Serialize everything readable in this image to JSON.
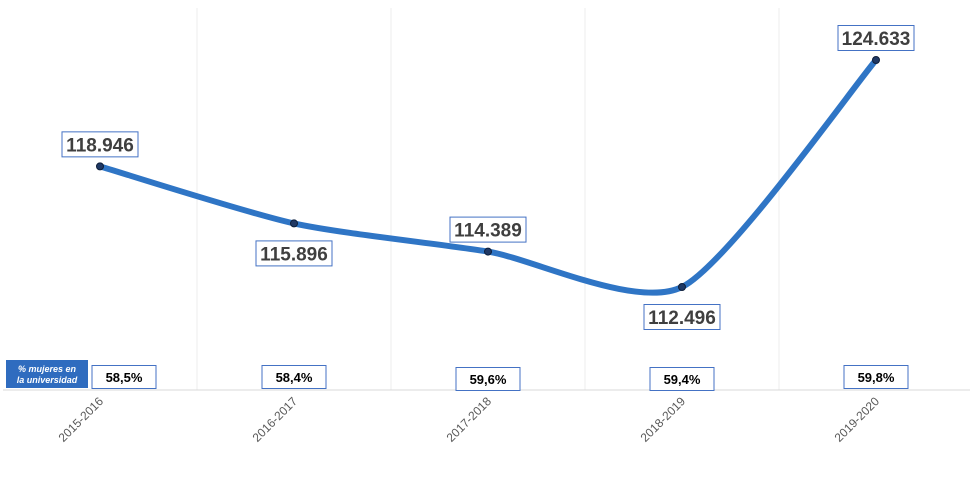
{
  "chart_data": {
    "type": "line",
    "categories": [
      "2015-2016",
      "2016-2017",
      "2017-2018",
      "2018-2019",
      "2019-2020"
    ],
    "values": [
      118946,
      115896,
      114389,
      112496,
      124633
    ],
    "value_labels": [
      "118.946",
      "115.896",
      "114.389",
      "112.496",
      "124.633"
    ],
    "secondary_row": {
      "label": "% mujeres en la universidad",
      "label_lines": [
        "% mujeres en",
        "la universidad"
      ],
      "values": [
        "58,5%",
        "58,4%",
        "59,6%",
        "59,4%",
        "59,8%"
      ]
    },
    "title": "",
    "xlabel": "",
    "ylabel": "",
    "grid": "vertical",
    "legend": "none"
  },
  "colors": {
    "line": "#2f75c5",
    "marker_fill": "#1f3864",
    "label_border": "#4472c4",
    "badge_bg": "#2f6cbf",
    "grid": "#ececec",
    "axis": "#d9d9d9"
  }
}
